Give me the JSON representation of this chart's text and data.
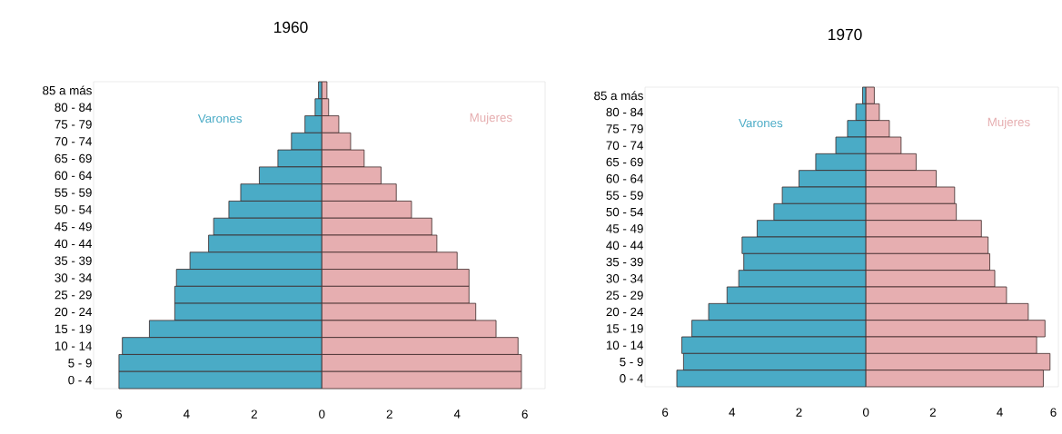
{
  "chart_data": [
    {
      "type": "bar",
      "orientation": "horizontal",
      "stacked": true,
      "title": "1960",
      "categories": [
        "85 a más",
        "80 - 84",
        "75 - 79",
        "70 - 74",
        "65 - 69",
        "60 - 64",
        "55 - 59",
        "50 - 54",
        "45 - 49",
        "40 - 44",
        "35 - 39",
        "30 - 34",
        "25 - 29",
        "20 - 24",
        "15 - 19",
        "10 - 14",
        "5 - 9",
        "0 - 4"
      ],
      "series": [
        {
          "name": "Varones",
          "color": "#4aabc6",
          "values": [
            -0.1,
            -0.2,
            -0.5,
            -0.9,
            -1.3,
            -1.85,
            -2.4,
            -2.75,
            -3.2,
            -3.35,
            -3.9,
            -4.3,
            -4.35,
            -4.35,
            -5.1,
            -5.9,
            -6.0,
            -6.0
          ]
        },
        {
          "name": "Mujeres",
          "color": "#e6aeb0",
          "values": [
            0.15,
            0.2,
            0.5,
            0.85,
            1.25,
            1.75,
            2.2,
            2.65,
            3.25,
            3.4,
            4.0,
            4.35,
            4.35,
            4.55,
            5.15,
            5.8,
            5.9,
            5.9
          ]
        }
      ],
      "xlim": [
        -6.75,
        6.6
      ],
      "xticks": [
        {
          "value": -6,
          "label": "6"
        },
        {
          "value": -4,
          "label": "4"
        },
        {
          "value": -2,
          "label": "2"
        },
        0,
        2,
        4,
        6
      ]
    },
    {
      "type": "bar",
      "orientation": "horizontal",
      "stacked": true,
      "title": "1970",
      "categories": [
        "85 a más",
        "80 - 84",
        "75 - 79",
        "70 - 74",
        "65 - 69",
        "60 - 64",
        "55 - 59",
        "50 - 54",
        "45 - 49",
        "40 - 44",
        "35 - 39",
        "30 - 34",
        "25 - 29",
        "20 - 24",
        "15 - 19",
        "10 - 14",
        "5 - 9",
        "0 - 4"
      ],
      "series": [
        {
          "name": "Varones",
          "color": "#4aabc6",
          "values": [
            -0.1,
            -0.3,
            -0.55,
            -0.9,
            -1.5,
            -2.0,
            -2.5,
            -2.75,
            -3.25,
            -3.7,
            -3.65,
            -3.8,
            -4.15,
            -4.7,
            -5.2,
            -5.5,
            -5.45,
            -5.65
          ]
        },
        {
          "name": "Mujeres",
          "color": "#e6aeb0",
          "values": [
            0.25,
            0.4,
            0.7,
            1.05,
            1.5,
            2.1,
            2.65,
            2.7,
            3.45,
            3.65,
            3.7,
            3.85,
            4.2,
            4.85,
            5.35,
            5.1,
            5.5,
            5.3
          ]
        }
      ],
      "xlim": [
        -6.6,
        5.75
      ],
      "xticks": [
        {
          "value": -6,
          "label": "6"
        },
        {
          "value": -4,
          "label": "4"
        },
        {
          "value": -2,
          "label": "2"
        },
        0,
        2,
        4,
        {
          "value": 5.6,
          "label": "6"
        }
      ]
    }
  ]
}
